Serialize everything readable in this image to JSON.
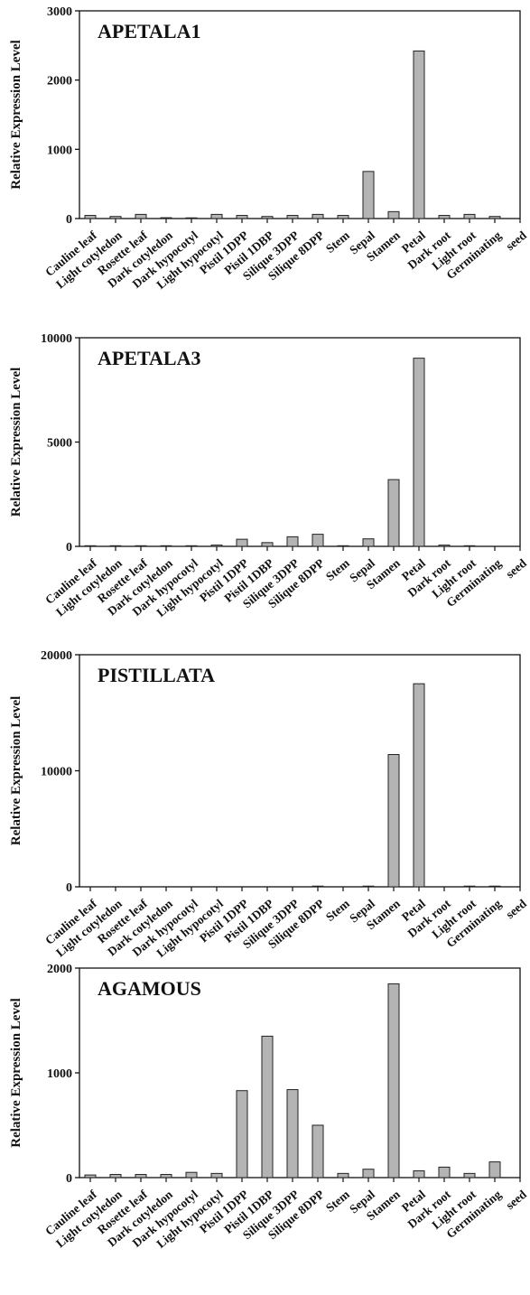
{
  "chart_data": [
    {
      "type": "bar",
      "title": "APETALA1",
      "ylabel": "Relative Expression Level",
      "ylim": [
        0,
        3000
      ],
      "yticks": [
        0,
        1000,
        2000,
        3000
      ],
      "categories": [
        "Cauline leaf",
        "Light cotyledon",
        "Rosette leaf",
        "Dark cotyledon",
        "Dark hypocotyl",
        "Light hypocotyl",
        "Pistil 1DPP",
        "Pistil 1DBP",
        "Silique 3DPP",
        "Silique 8DPP",
        "Stem",
        "Sepal",
        "Stamen",
        "Petal",
        "Dark root",
        "Light root",
        "Germinating",
        "seed"
      ],
      "values": [
        45,
        30,
        60,
        12,
        10,
        60,
        45,
        30,
        45,
        60,
        45,
        680,
        100,
        2420,
        45,
        60,
        30,
        null
      ],
      "bar_color": "#b4b4b4",
      "grid": false
    },
    {
      "type": "bar",
      "title": "APETALA3",
      "ylabel": "Relative Expression Level",
      "ylim": [
        0,
        10000
      ],
      "yticks": [
        0,
        5000,
        10000
      ],
      "categories": [
        "Cauline leaf",
        "Light cotyledon",
        "Rosette leaf",
        "Dark cotyledon",
        "Dark hypocotyl",
        "Light hypocotyl",
        "Pistil 1DPP",
        "Pistil 1DBP",
        "Silique 3DPP",
        "Silique 8DPP",
        "Stem",
        "Sepal",
        "Stamen",
        "Petal",
        "Dark root",
        "Light root",
        "Germinating",
        "seed"
      ],
      "values": [
        30,
        30,
        30,
        30,
        30,
        60,
        340,
        180,
        460,
        580,
        30,
        360,
        3200,
        9020,
        60,
        30,
        0,
        null
      ],
      "bar_color": "#b4b4b4",
      "grid": false
    },
    {
      "type": "bar",
      "title": "PISTILLATA",
      "ylabel": "Relative Expression Level",
      "ylim": [
        0,
        20000
      ],
      "yticks": [
        0,
        10000,
        20000
      ],
      "categories": [
        "Cauline leaf",
        "Light cotyledon",
        "Rosette leaf",
        "Dark cotyledon",
        "Dark hypocotyl",
        "Light hypocotyl",
        "Pistil 1DPP",
        "Pistil 1DBP",
        "Silique 3DPP",
        "Silique 8DPP",
        "Stem",
        "Sepal",
        "Stamen",
        "Petal",
        "Dark root",
        "Light root",
        "Germinating",
        "seed"
      ],
      "values": [
        0,
        0,
        0,
        0,
        0,
        0,
        0,
        0,
        0,
        60,
        0,
        60,
        11400,
        17500,
        0,
        60,
        60,
        null
      ],
      "bar_color": "#b4b4b4",
      "grid": false
    },
    {
      "type": "bar",
      "title": "AGAMOUS",
      "ylabel": "Relative Expression Level",
      "ylim": [
        0,
        2000
      ],
      "yticks": [
        0,
        1000,
        2000
      ],
      "categories": [
        "Cauline leaf",
        "Light cotyledon",
        "Rosette leaf",
        "Dark cotyledon",
        "Dark hypocotyl",
        "Light hypocotyl",
        "Pistil 1DPP",
        "Pistil 1DBP",
        "Silique 3DPP",
        "Silique 8DPP",
        "Stem",
        "Sepal",
        "Stamen",
        "Petal",
        "Dark root",
        "Light root",
        "Germinating",
        "seed"
      ],
      "values": [
        25,
        30,
        30,
        30,
        50,
        40,
        830,
        1350,
        840,
        500,
        40,
        80,
        1850,
        65,
        100,
        40,
        150,
        null
      ],
      "bar_color": "#b4b4b4",
      "grid": false
    }
  ]
}
